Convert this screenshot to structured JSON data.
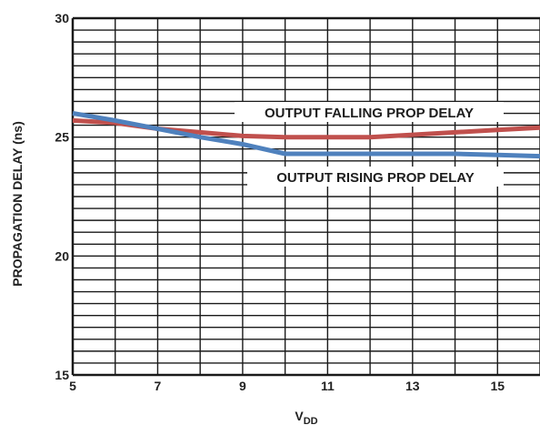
{
  "chart_data": {
    "type": "line",
    "title": "",
    "xlabel": "V",
    "xlabel_subscript": "DD",
    "ylabel": "PROPAGATION DELAY (ns)",
    "xlim": [
      5,
      16
    ],
    "ylim": [
      15,
      30
    ],
    "x_ticks": [
      "5",
      "7",
      "9",
      "11",
      "13",
      "15"
    ],
    "y_ticks": [
      "15",
      "20",
      "25",
      "30"
    ],
    "grid": true,
    "series": [
      {
        "name": "OUTPUT FALLING PROP DELAY",
        "color": "#c0504d",
        "x": [
          5,
          6,
          7,
          8,
          9,
          10,
          11,
          12,
          13,
          14,
          15,
          16
        ],
        "y": [
          25.7,
          25.6,
          25.35,
          25.2,
          25.05,
          25.0,
          25.0,
          25.0,
          25.1,
          25.2,
          25.3,
          25.4
        ]
      },
      {
        "name": "OUTPUT RISING PROP DELAY",
        "color": "#4f81bd",
        "x": [
          5,
          6,
          7,
          8,
          9,
          10,
          11,
          12,
          13,
          14,
          15,
          16
        ],
        "y": [
          26.0,
          25.7,
          25.35,
          25.0,
          24.7,
          24.3,
          24.3,
          24.3,
          24.3,
          24.3,
          24.25,
          24.2
        ]
      }
    ]
  }
}
